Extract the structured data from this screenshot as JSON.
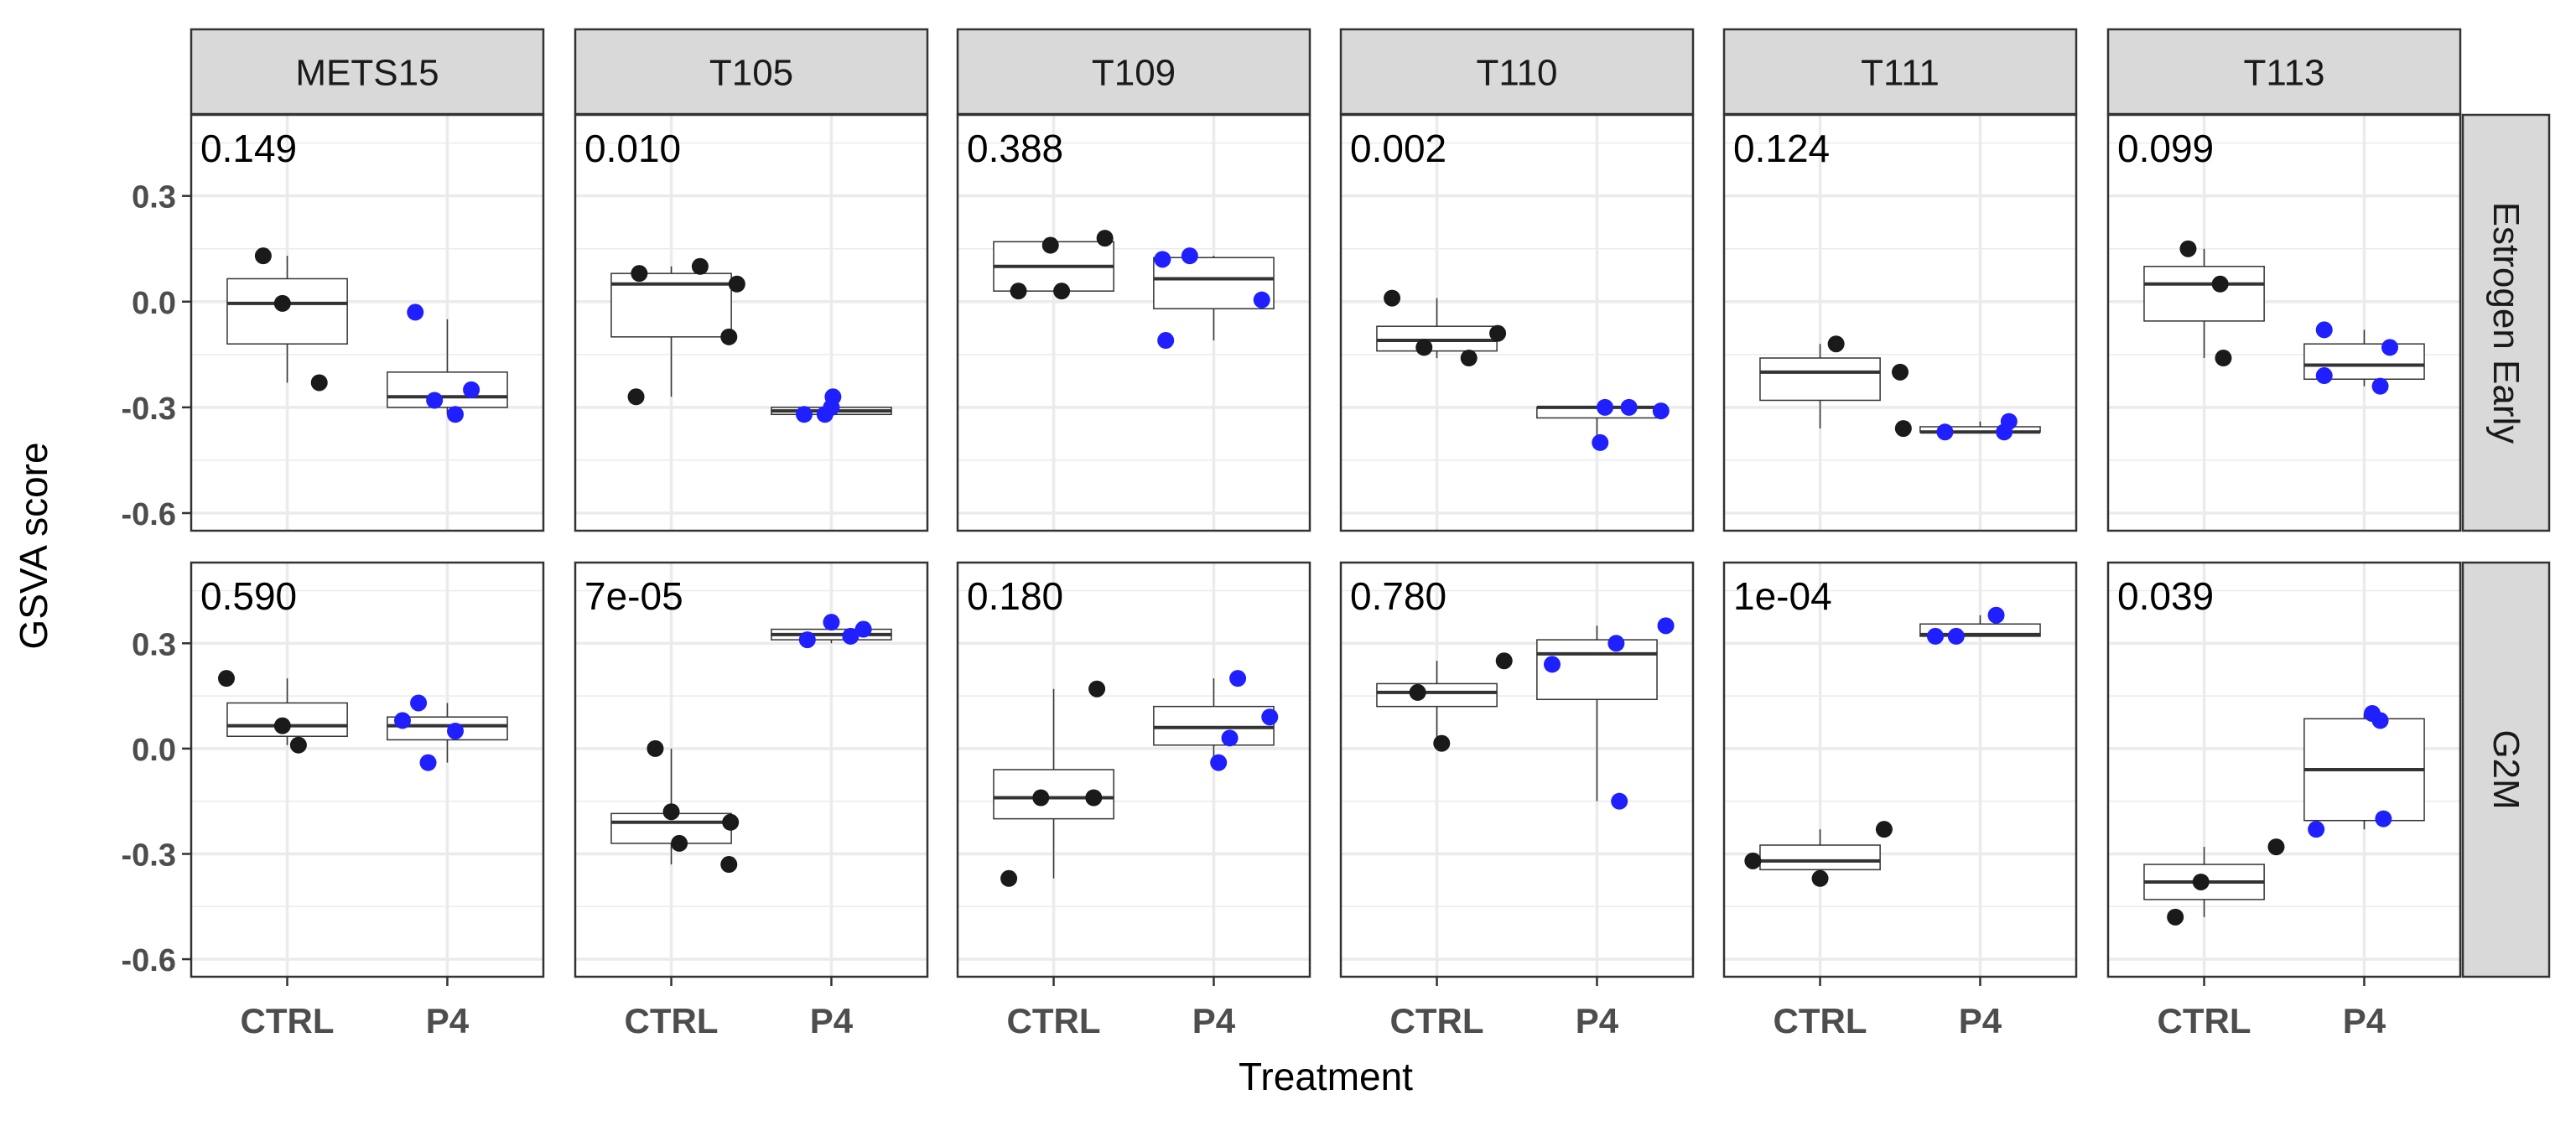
{
  "chart_data": {
    "type": "box",
    "xlabel": "Treatment",
    "ylabel": "GSVA score",
    "ylim": [
      -0.65,
      0.53
    ],
    "y_ticks": [
      -0.6,
      -0.3,
      0.0,
      0.3
    ],
    "y_tick_labels": [
      "-0.6",
      "-0.3",
      "0.0",
      "0.3"
    ],
    "categories": [
      "CTRL",
      "P4"
    ],
    "columns": [
      "METS15",
      "T105",
      "T109",
      "T110",
      "T111",
      "T113"
    ],
    "rows": [
      "Estrogen Early",
      "G2M"
    ],
    "colors": {
      "CTRL": "#1a1a1a",
      "P4": "#1f1fff",
      "strip_bg": "#d9d9d9",
      "grid": "#ebebeb"
    },
    "panels": [
      {
        "row": "Estrogen Early",
        "column": "METS15",
        "p_value": "0.149",
        "points": {
          "CTRL": [
            [
              0.85,
              0.13
            ],
            [
              0.97,
              -0.005
            ],
            [
              1.2,
              -0.23
            ]
          ],
          "P4": [
            [
              1.8,
              -0.03
            ],
            [
              1.92,
              -0.28
            ],
            [
              2.05,
              -0.32
            ],
            [
              2.15,
              -0.25
            ]
          ]
        },
        "boxes": {
          "CTRL": [
            -0.23,
            -0.12,
            -0.005,
            0.065,
            0.13
          ],
          "P4": [
            -0.32,
            -0.3,
            -0.27,
            -0.2,
            -0.05
          ]
        }
      },
      {
        "row": "Estrogen Early",
        "column": "T105",
        "p_value": "0.010",
        "points": {
          "CTRL": [
            [
              0.78,
              -0.27
            ],
            [
              0.8,
              0.08
            ],
            [
              1.18,
              0.1
            ],
            [
              1.36,
              -0.1
            ],
            [
              1.41,
              0.05
            ]
          ],
          "P4": [
            [
              1.83,
              -0.32
            ],
            [
              1.96,
              -0.32
            ],
            [
              2.0,
              -0.3
            ],
            [
              2.01,
              -0.27
            ]
          ]
        },
        "boxes": {
          "CTRL": [
            -0.27,
            -0.1,
            0.05,
            0.08,
            0.1
          ],
          "P4": [
            -0.32,
            -0.32,
            -0.31,
            -0.3,
            -0.27
          ]
        }
      },
      {
        "row": "Estrogen Early",
        "column": "T109",
        "p_value": "0.388",
        "points": {
          "CTRL": [
            [
              0.78,
              0.03
            ],
            [
              0.98,
              0.16
            ],
            [
              1.05,
              0.03
            ],
            [
              1.32,
              0.18
            ]
          ],
          "P4": [
            [
              1.68,
              0.12
            ],
            [
              1.7,
              -0.11
            ],
            [
              1.85,
              0.13
            ],
            [
              2.3,
              0.005
            ]
          ]
        },
        "boxes": {
          "CTRL": [
            0.03,
            0.03,
            0.1,
            0.17,
            0.18
          ],
          "P4": [
            -0.11,
            -0.02,
            0.065,
            0.125,
            0.13
          ]
        }
      },
      {
        "row": "Estrogen Early",
        "column": "T110",
        "p_value": "0.002",
        "points": {
          "CTRL": [
            [
              0.72,
              0.01
            ],
            [
              0.92,
              -0.13
            ],
            [
              1.2,
              -0.16
            ],
            [
              1.38,
              -0.09
            ]
          ],
          "P4": [
            [
              2.02,
              -0.4
            ],
            [
              2.05,
              -0.3
            ],
            [
              2.2,
              -0.3
            ],
            [
              2.4,
              -0.31
            ]
          ]
        },
        "boxes": {
          "CTRL": [
            -0.16,
            -0.14,
            -0.11,
            -0.07,
            0.01
          ],
          "P4": [
            -0.4,
            -0.33,
            -0.3,
            -0.3,
            -0.3
          ]
        }
      },
      {
        "row": "Estrogen Early",
        "column": "T111",
        "p_value": "0.124",
        "points": {
          "CTRL": [
            [
              1.1,
              -0.12
            ],
            [
              1.5,
              -0.2
            ],
            [
              1.52,
              -0.36
            ]
          ],
          "P4": [
            [
              1.78,
              -0.37
            ],
            [
              2.15,
              -0.37
            ],
            [
              2.18,
              -0.34
            ]
          ]
        },
        "boxes": {
          "CTRL": [
            -0.36,
            -0.28,
            -0.2,
            -0.16,
            -0.12
          ],
          "P4": [
            -0.37,
            -0.37,
            -0.37,
            -0.355,
            -0.34
          ]
        }
      },
      {
        "row": "Estrogen Early",
        "column": "T113",
        "p_value": "0.099",
        "points": {
          "CTRL": [
            [
              0.9,
              0.15
            ],
            [
              1.1,
              0.05
            ],
            [
              1.12,
              -0.16
            ]
          ],
          "P4": [
            [
              1.75,
              -0.08
            ],
            [
              1.75,
              -0.21
            ],
            [
              2.1,
              -0.24
            ],
            [
              2.16,
              -0.13
            ]
          ]
        },
        "boxes": {
          "CTRL": [
            -0.16,
            -0.055,
            0.05,
            0.1,
            0.15
          ],
          "P4": [
            -0.24,
            -0.22,
            -0.18,
            -0.12,
            -0.08
          ]
        }
      },
      {
        "row": "G2M",
        "column": "METS15",
        "p_value": "0.590",
        "points": {
          "CTRL": [
            [
              0.62,
              0.2
            ],
            [
              0.97,
              0.065
            ],
            [
              1.07,
              0.01
            ]
          ],
          "P4": [
            [
              1.72,
              0.08
            ],
            [
              1.82,
              0.13
            ],
            [
              1.88,
              -0.04
            ],
            [
              2.05,
              0.05
            ]
          ]
        },
        "boxes": {
          "CTRL": [
            0.01,
            0.035,
            0.065,
            0.13,
            0.2
          ],
          "P4": [
            -0.04,
            0.025,
            0.065,
            0.09,
            0.13
          ]
        }
      },
      {
        "row": "G2M",
        "column": "T105",
        "p_value": "7e-05",
        "points": {
          "CTRL": [
            [
              0.9,
              0.0
            ],
            [
              1.0,
              -0.18
            ],
            [
              1.05,
              -0.27
            ],
            [
              1.37,
              -0.21
            ],
            [
              1.36,
              -0.33
            ]
          ],
          "P4": [
            [
              1.85,
              0.31
            ],
            [
              2.0,
              0.36
            ],
            [
              2.12,
              0.32
            ],
            [
              2.2,
              0.34
            ]
          ]
        },
        "boxes": {
          "CTRL": [
            -0.33,
            -0.27,
            -0.21,
            -0.185,
            0.0
          ],
          "P4": [
            0.3,
            0.31,
            0.325,
            0.34,
            0.36
          ]
        }
      },
      {
        "row": "G2M",
        "column": "T109",
        "p_value": "0.180",
        "points": {
          "CTRL": [
            [
              0.72,
              -0.37
            ],
            [
              0.92,
              -0.14
            ],
            [
              1.25,
              -0.14
            ],
            [
              1.27,
              0.17
            ]
          ],
          "P4": [
            [
              2.03,
              -0.04
            ],
            [
              2.1,
              0.03
            ],
            [
              2.15,
              0.2
            ],
            [
              2.35,
              0.09
            ]
          ]
        },
        "boxes": {
          "CTRL": [
            -0.37,
            -0.2,
            -0.14,
            -0.06,
            0.17
          ],
          "P4": [
            -0.04,
            0.01,
            0.06,
            0.12,
            0.2
          ]
        }
      },
      {
        "row": "G2M",
        "column": "T110",
        "p_value": "0.780",
        "points": {
          "CTRL": [
            [
              0.88,
              0.16
            ],
            [
              1.03,
              0.015
            ],
            [
              1.42,
              0.25
            ]
          ],
          "P4": [
            [
              1.72,
              0.24
            ],
            [
              2.12,
              0.3
            ],
            [
              2.14,
              -0.15
            ],
            [
              2.43,
              0.35
            ]
          ]
        },
        "boxes": {
          "CTRL": [
            0.015,
            0.12,
            0.16,
            0.185,
            0.25
          ],
          "P4": [
            -0.15,
            0.14,
            0.27,
            0.31,
            0.35
          ]
        }
      },
      {
        "row": "G2M",
        "column": "T111",
        "p_value": "1e-04",
        "points": {
          "CTRL": [
            [
              0.58,
              -0.32
            ],
            [
              1.0,
              -0.37
            ],
            [
              1.4,
              -0.23
            ]
          ],
          "P4": [
            [
              1.72,
              0.32
            ],
            [
              1.85,
              0.32
            ],
            [
              2.1,
              0.38
            ]
          ]
        },
        "boxes": {
          "CTRL": [
            -0.37,
            -0.345,
            -0.32,
            -0.275,
            -0.23
          ],
          "P4": [
            0.32,
            0.32,
            0.325,
            0.355,
            0.38
          ]
        }
      },
      {
        "row": "G2M",
        "column": "T113",
        "p_value": "0.039",
        "points": {
          "CTRL": [
            [
              0.82,
              -0.48
            ],
            [
              0.98,
              -0.38
            ],
            [
              1.45,
              -0.28
            ]
          ],
          "P4": [
            [
              1.7,
              -0.23
            ],
            [
              2.05,
              0.1
            ],
            [
              2.1,
              0.08
            ],
            [
              2.12,
              -0.2
            ]
          ]
        },
        "boxes": {
          "CTRL": [
            -0.48,
            -0.43,
            -0.38,
            -0.33,
            -0.28
          ],
          "P4": [
            -0.23,
            -0.205,
            -0.06,
            0.085,
            0.1
          ]
        }
      }
    ]
  }
}
